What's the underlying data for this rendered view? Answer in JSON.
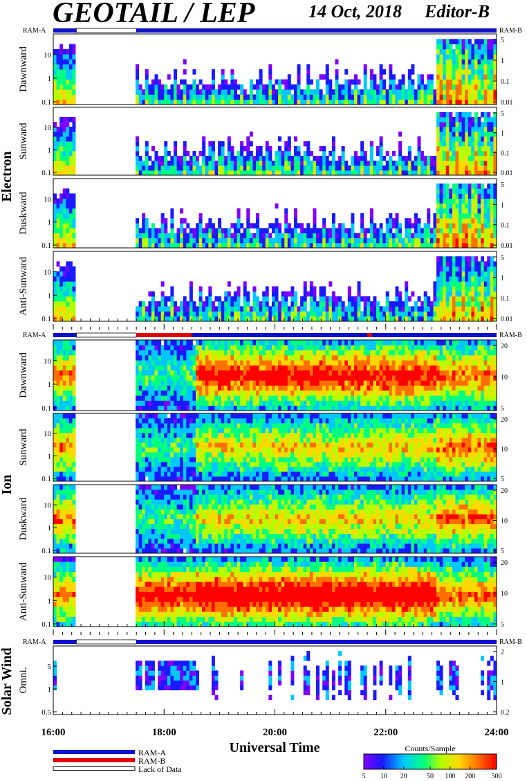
{
  "header": {
    "title": "GEOTAIL / LEP",
    "date": "14 Oct, 2018",
    "editor": "Editor-B"
  },
  "ram": {
    "left": "RAM-A",
    "right": "RAM-B"
  },
  "groups": {
    "electron": "Electron",
    "ion": "Ion",
    "solar_wind": "Solar Wind"
  },
  "panels": {
    "electron": [
      "Dawnward",
      "Sunward",
      "Duskward",
      "Anti-Sunward"
    ],
    "ion": [
      "Dawnward",
      "Sunward",
      "Duskward",
      "Anti-Sunward"
    ],
    "solar_wind": [
      "Omni."
    ]
  },
  "legend": {
    "ram_a": "RAM-A",
    "ram_b": "RAM-B",
    "lack": "Lack of Data",
    "colorbar_title": "Counts/Sample",
    "colorbar_ticks": [
      "5",
      "10",
      "20",
      "50",
      "100",
      "200",
      "500"
    ]
  },
  "colors": {
    "ram_a": "#1010c8",
    "ram_b": "#e00000",
    "scale": [
      "#8000ff",
      "#1a1aff",
      "#00c8ff",
      "#00ff80",
      "#b4ff00",
      "#ffd800",
      "#ff7000",
      "#ff0000"
    ]
  },
  "chart_data": [
    {
      "type": "heatmap",
      "group": "Electron",
      "panels": [
        "Dawnward",
        "Sunward",
        "Duskward",
        "Anti-Sunward"
      ],
      "xlabel": "Universal Time",
      "xticks": [
        "16:00",
        "18:00",
        "20:00",
        "22:00",
        "24:00"
      ],
      "xlim": [
        "16:00",
        "24:00"
      ],
      "left_axis_ticks": [
        "0.1",
        "1",
        "10"
      ],
      "right_axis_ticks": [
        "0.01",
        "0.1",
        "1",
        "5"
      ],
      "data_gap": [
        "16:25",
        "17:30"
      ],
      "colorbar": {
        "label": "Counts/Sample",
        "range": [
          5,
          500
        ],
        "scale": "log"
      }
    },
    {
      "type": "heatmap",
      "group": "Ion",
      "panels": [
        "Dawnward",
        "Sunward",
        "Duskward",
        "Anti-Sunward"
      ],
      "xlim": [
        "16:00",
        "24:00"
      ],
      "left_axis_ticks": [
        "0.1",
        "1",
        "10"
      ],
      "right_axis_ticks": [
        "5",
        "10",
        "20"
      ],
      "data_gap": [
        "16:25",
        "17:30"
      ],
      "ram_b_intervals": [
        [
          "17:30",
          "18:30"
        ],
        [
          "21:40",
          "21:45"
        ]
      ]
    },
    {
      "type": "heatmap",
      "group": "Solar Wind",
      "panels": [
        "Omni."
      ],
      "xlim": [
        "16:00",
        "24:00"
      ],
      "left_axis_ticks": [
        "0.5",
        "1",
        "5"
      ],
      "right_axis_ticks": [
        "0.2",
        "1",
        "2"
      ],
      "data_gap": [
        "16:25",
        "17:30"
      ]
    }
  ]
}
